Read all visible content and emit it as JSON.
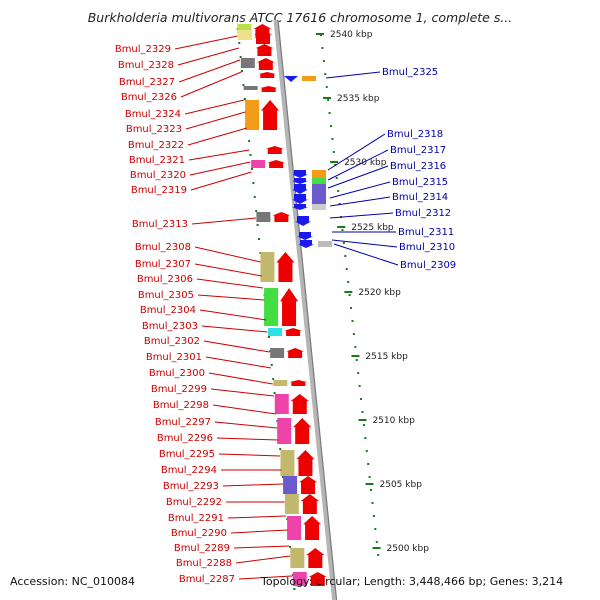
{
  "title": "Burkholderia multivorans ATCC 17616 chromosome 1, complete s...",
  "footer": {
    "accession": "Accession: NC_010084",
    "summary": "Topology: circular; Length: 3,448,466 bp; Genes: 3,214"
  },
  "colors": {
    "left_label": "#cc0000",
    "right_label": "#0000aa",
    "forward_gene": "#ee0000",
    "reverse_gene": "#1a1aee",
    "tick": "#1a7a1a",
    "backbone": "#999999"
  },
  "ruler_ticks": [
    {
      "label": "2540 kbp"
    },
    {
      "label": "2535 kbp"
    },
    {
      "label": "2530 kbp"
    },
    {
      "label": "2525 kbp"
    },
    {
      "label": "2520 kbp"
    },
    {
      "label": "2515 kbp"
    },
    {
      "label": "2510 kbp"
    },
    {
      "label": "2505 kbp"
    },
    {
      "label": "2500 kbp"
    }
  ],
  "left_genes": [
    "Bmul_2329",
    "Bmul_2328",
    "Bmul_2327",
    "Bmul_2326",
    "Bmul_2324",
    "Bmul_2323",
    "Bmul_2322",
    "Bmul_2321",
    "Bmul_2320",
    "Bmul_2319",
    "Bmul_2313",
    "Bmul_2308",
    "Bmul_2307",
    "Bmul_2306",
    "Bmul_2305",
    "Bmul_2304",
    "Bmul_2303",
    "Bmul_2302",
    "Bmul_2301",
    "Bmul_2300",
    "Bmul_2299",
    "Bmul_2298",
    "Bmul_2297",
    "Bmul_2296",
    "Bmul_2295",
    "Bmul_2294",
    "Bmul_2293",
    "Bmul_2292",
    "Bmul_2291",
    "Bmul_2290",
    "Bmul_2289",
    "Bmul_2288",
    "Bmul_2287"
  ],
  "right_genes": [
    "Bmul_2325",
    "Bmul_2318",
    "Bmul_2317",
    "Bmul_2316",
    "Bmul_2315",
    "Bmul_2314",
    "Bmul_2312",
    "Bmul_2311",
    "Bmul_2310",
    "Bmul_2309"
  ]
}
